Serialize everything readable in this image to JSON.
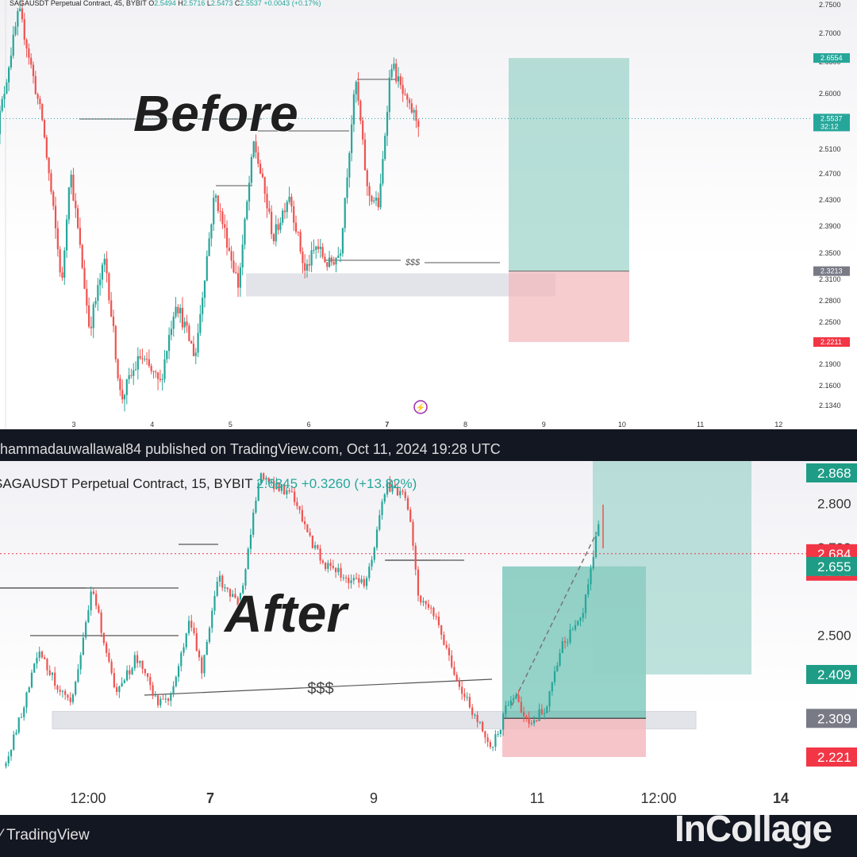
{
  "publish_line": "hammadauwallawal84 published on TradingView.com, Oct 11, 2024 19:28 UTC",
  "footer": {
    "brand": "TradingView",
    "watermark": "InCollage"
  },
  "colors": {
    "up": "#26a69a",
    "down": "#ef5350",
    "target": "#92cfc4",
    "stop": "#f4b6bb",
    "zone": "#e3e4ea"
  },
  "chart_data": [
    {
      "type": "candlestick",
      "title": "SAGAUSDT Perpetual Contract, 45, BYBIT",
      "annotation": "Before",
      "ohlc_header": {
        "o_label": "O",
        "o": "2.5494",
        "h_label": "H",
        "h": "2.5716",
        "l_label": "L",
        "l": "2.5473",
        "c_label": "C",
        "c": "2.5537",
        "change": "+0.0043 (+0.17%)"
      },
      "x_ticks": [
        "3",
        "4",
        "5",
        "6",
        "7",
        "8",
        "9",
        "10",
        "11",
        "12"
      ],
      "y_ticks": [
        "2.7500",
        "2.7000",
        "2.6500",
        "2.6000",
        "2.5500",
        "2.5100",
        "2.4700",
        "2.4300",
        "2.3900",
        "2.3500",
        "2.3100",
        "2.2800",
        "2.2500",
        "2.2200",
        "2.1900",
        "2.1600",
        "2.1340"
      ],
      "ylim": [
        2.125,
        2.76
      ],
      "price_labels": [
        {
          "value": 2.6554,
          "text": "2.6554",
          "kind": "target"
        },
        {
          "value": 2.5537,
          "text": "2.5537",
          "sub": "32:12",
          "kind": "last"
        },
        {
          "value": 2.3213,
          "text": "2.3213",
          "kind": "entry"
        },
        {
          "value": 2.2211,
          "text": "2.2211",
          "kind": "stop"
        }
      ],
      "position": {
        "entry": 2.3213,
        "target": 2.6554,
        "stop": 2.2211
      },
      "liquidity_label": "$$$",
      "demand_zone": [
        2.285,
        2.318
      ],
      "series_path": [
        [
          2.0,
          2.52
        ],
        [
          2.3,
          2.74
        ],
        [
          2.6,
          2.55
        ],
        [
          2.85,
          2.3
        ],
        [
          2.95,
          2.48
        ],
        [
          3.2,
          2.24
        ],
        [
          3.4,
          2.34
        ],
        [
          3.6,
          2.14
        ],
        [
          3.85,
          2.2
        ],
        [
          4.1,
          2.16
        ],
        [
          4.3,
          2.28
        ],
        [
          4.55,
          2.2
        ],
        [
          4.8,
          2.44
        ],
        [
          5.1,
          2.3
        ],
        [
          5.3,
          2.52
        ],
        [
          5.55,
          2.37
        ],
        [
          5.75,
          2.44
        ],
        [
          5.95,
          2.32
        ],
        [
          6.1,
          2.36
        ],
        [
          6.25,
          2.33
        ],
        [
          6.4,
          2.35
        ],
        [
          6.6,
          2.62
        ],
        [
          6.75,
          2.44
        ],
        [
          6.9,
          2.42
        ],
        [
          7.05,
          2.65
        ],
        [
          7.25,
          2.58
        ],
        [
          7.4,
          2.55
        ]
      ]
    },
    {
      "type": "candlestick",
      "title": "SAGAUSDT Perpetual Contract, 15, BYBIT",
      "annotation": "After",
      "ohlc_header": {
        "o_label": "",
        "o": "2.6845",
        "change": "+0.3260 (+13.82%)"
      },
      "x_ticks": [
        "12:00",
        "7",
        "9",
        "11",
        "12:00",
        "14"
      ],
      "y_ticks": [
        "2.800",
        "2.700",
        "2.500"
      ],
      "ylim": [
        2.18,
        2.89
      ],
      "price_labels": [
        {
          "value": 2.868,
          "text": "2.868",
          "kind": "target"
        },
        {
          "value": 2.684,
          "text": "2.684",
          "sub": "01:01",
          "kind": "last"
        },
        {
          "value": 2.655,
          "text": "2.655",
          "kind": "target"
        },
        {
          "value": 2.409,
          "text": "2.409",
          "kind": "target"
        },
        {
          "value": 2.309,
          "text": "2.309",
          "kind": "entry"
        },
        {
          "value": 2.221,
          "text": "2.221",
          "kind": "stop"
        }
      ],
      "position": {
        "entry": 2.309,
        "target": 2.655,
        "stop": 2.221
      },
      "liquidity_label": "$$$",
      "demand_zone": [
        2.285,
        2.325
      ],
      "series_path": [
        [
          4.5,
          2.2
        ],
        [
          4.9,
          2.46
        ],
        [
          5.3,
          2.33
        ],
        [
          5.55,
          2.61
        ],
        [
          5.85,
          2.36
        ],
        [
          6.1,
          2.45
        ],
        [
          6.35,
          2.35
        ],
        [
          6.5,
          2.34
        ],
        [
          6.75,
          2.54
        ],
        [
          6.9,
          2.42
        ],
        [
          7.1,
          2.63
        ],
        [
          7.35,
          2.56
        ],
        [
          7.6,
          2.86
        ],
        [
          8.0,
          2.82
        ],
        [
          8.2,
          2.72
        ],
        [
          8.45,
          2.65
        ],
        [
          8.9,
          2.61
        ],
        [
          9.15,
          2.84
        ],
        [
          9.4,
          2.82
        ],
        [
          9.55,
          2.59
        ],
        [
          9.75,
          2.54
        ],
        [
          10.1,
          2.36
        ],
        [
          10.3,
          2.3
        ],
        [
          10.45,
          2.24
        ],
        [
          10.7,
          2.37
        ],
        [
          10.9,
          2.3
        ],
        [
          11.1,
          2.33
        ],
        [
          11.3,
          2.47
        ],
        [
          11.55,
          2.55
        ],
        [
          11.75,
          2.75
        ]
      ]
    }
  ]
}
